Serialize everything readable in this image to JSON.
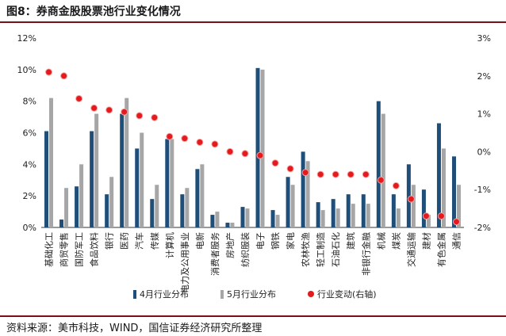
{
  "header": {
    "title": "图8：券商金股股票池行业变化情况"
  },
  "footer": {
    "source": "资料来源：美市科技，WIND，国信证券经济研究所整理"
  },
  "colors": {
    "april": "#1f4e79",
    "may": "#a6a6a6",
    "change": "#e41a1c"
  },
  "chart_data": {
    "type": "bar",
    "title": "",
    "categories": [
      "基础化工",
      "商贸零售",
      "国防军工",
      "食品饮料",
      "银行",
      "医药",
      "汽车",
      "传媒",
      "计算机",
      "电力及公用事业",
      "电新",
      "消费者服务",
      "房地产",
      "纺织服装",
      "电子",
      "钢铁",
      "家电",
      "农林牧渔",
      "轻工制造",
      "石油石化",
      "建筑",
      "非银行金融",
      "机械",
      "煤炭",
      "交通运输",
      "建材",
      "有色金属",
      "通信"
    ],
    "series": [
      {
        "name": "4月行业分布",
        "axis": "left",
        "values": [
          6.1,
          0.5,
          2.6,
          6.1,
          2.1,
          7.2,
          5.0,
          1.8,
          5.6,
          2.1,
          3.7,
          0.8,
          0.3,
          1.3,
          10.1,
          1.1,
          3.2,
          4.8,
          1.6,
          1.8,
          2.1,
          2.1,
          8.0,
          2.1,
          4.0,
          2.4,
          6.6,
          4.5
        ]
      },
      {
        "name": "5月行业分布",
        "axis": "left",
        "values": [
          8.2,
          2.5,
          4.0,
          7.2,
          3.2,
          8.2,
          6.0,
          2.7,
          5.6,
          2.5,
          4.0,
          1.0,
          0.3,
          1.2,
          10.0,
          0.8,
          2.7,
          4.2,
          1.1,
          1.2,
          1.5,
          1.5,
          7.2,
          1.2,
          2.7,
          0.8,
          5.0,
          2.7
        ]
      },
      {
        "name": "行业变动(右轴)",
        "axis": "right",
        "type": "scatter",
        "values": [
          2.1,
          2.0,
          1.4,
          1.15,
          1.1,
          1.05,
          0.95,
          0.9,
          0.4,
          0.35,
          0.25,
          0.2,
          0.0,
          -0.05,
          -0.1,
          -0.3,
          -0.45,
          -0.55,
          -0.6,
          -0.6,
          -0.6,
          -0.6,
          -0.75,
          -0.9,
          -1.25,
          -1.7,
          -1.7,
          -1.85
        ]
      }
    ],
    "left_axis": {
      "min": 0,
      "max": 12,
      "step": 2,
      "ticks": [
        "0%",
        "2%",
        "4%",
        "6%",
        "8%",
        "10%",
        "12%"
      ]
    },
    "right_axis": {
      "min": -2,
      "max": 3,
      "step": 1,
      "ticks": [
        "-2%",
        "-1%",
        "0%",
        "1%",
        "2%",
        "3%"
      ]
    },
    "grid": false,
    "legend_position": "bottom"
  }
}
